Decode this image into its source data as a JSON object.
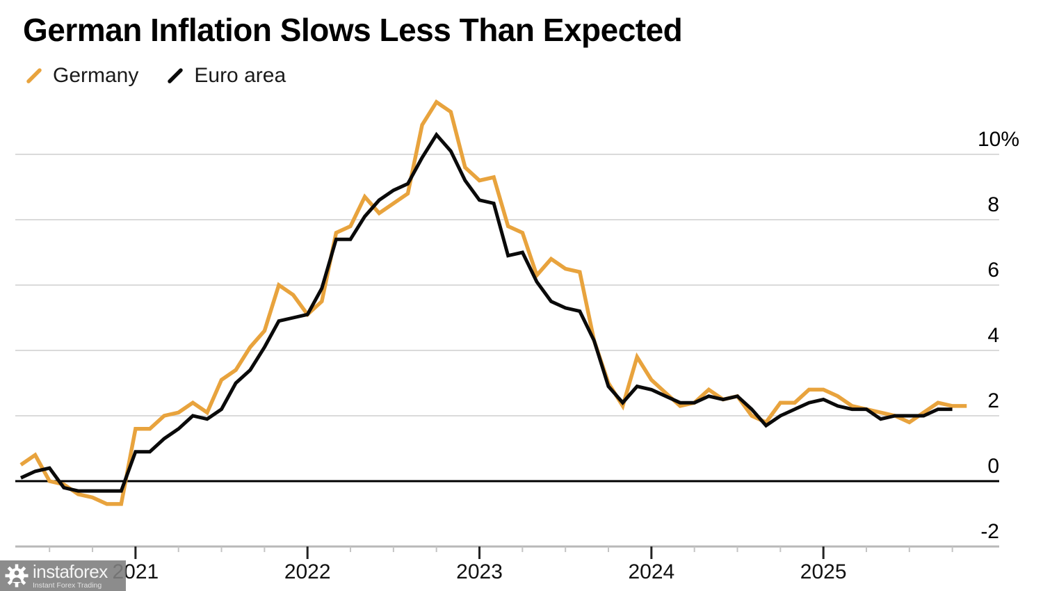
{
  "title": "German Inflation Slows Less Than Expected",
  "legend": [
    {
      "label": "Germany",
      "color": "#E8A33D"
    },
    {
      "label": "Euro area",
      "color": "#0A0A0A"
    }
  ],
  "watermark": {
    "brand": "instaforex",
    "tagline": "Instant Forex Trading"
  },
  "chart_data": {
    "type": "line",
    "x_unit": "month",
    "x_start": "2020-05",
    "x_end": "2025-11",
    "x_tick_labels": [
      "2021",
      "2022",
      "2023",
      "2024",
      "2025"
    ],
    "y_ticks": [
      10,
      8,
      6,
      4,
      2,
      0,
      -2
    ],
    "y_tick_labels": [
      "10%",
      "8",
      "6",
      "4",
      "2",
      "0",
      "-2"
    ],
    "ylim": [
      -2,
      11.8
    ],
    "grid": "horizontal",
    "zero_line": true,
    "legend_position": "top-left",
    "y_labels_position": "right",
    "series": [
      {
        "name": "Germany",
        "color": "#E8A33D",
        "values": [
          0.5,
          0.8,
          0.0,
          -0.1,
          -0.4,
          -0.5,
          -0.7,
          -0.7,
          1.6,
          1.6,
          2.0,
          2.1,
          2.4,
          2.1,
          3.1,
          3.4,
          4.1,
          4.6,
          6.0,
          5.7,
          5.1,
          5.5,
          7.6,
          7.8,
          8.7,
          8.2,
          8.5,
          8.8,
          10.9,
          11.6,
          11.3,
          9.6,
          9.2,
          9.3,
          7.8,
          7.6,
          6.3,
          6.8,
          6.5,
          6.4,
          4.3,
          3.0,
          2.3,
          3.8,
          3.1,
          2.7,
          2.3,
          2.4,
          2.8,
          2.5,
          2.6,
          2.0,
          1.8,
          2.4,
          2.4,
          2.8,
          2.8,
          2.6,
          2.3,
          2.2,
          2.1,
          2.0,
          1.8,
          2.1,
          2.4,
          2.3,
          2.3
        ]
      },
      {
        "name": "Euro area",
        "color": "#0A0A0A",
        "values": [
          0.1,
          0.3,
          0.4,
          -0.2,
          -0.3,
          -0.3,
          -0.3,
          -0.3,
          0.9,
          0.9,
          1.3,
          1.6,
          2.0,
          1.9,
          2.2,
          3.0,
          3.4,
          4.1,
          4.9,
          5.0,
          5.1,
          5.9,
          7.4,
          7.4,
          8.1,
          8.6,
          8.9,
          9.1,
          9.9,
          10.6,
          10.1,
          9.2,
          8.6,
          8.5,
          6.9,
          7.0,
          6.1,
          5.5,
          5.3,
          5.2,
          4.3,
          2.9,
          2.4,
          2.9,
          2.8,
          2.6,
          2.4,
          2.4,
          2.6,
          2.5,
          2.6,
          2.2,
          1.7,
          2.0,
          2.2,
          2.4,
          2.5,
          2.3,
          2.2,
          2.2,
          1.9,
          2.0,
          2.0,
          2.0,
          2.2,
          2.2
        ]
      }
    ]
  }
}
